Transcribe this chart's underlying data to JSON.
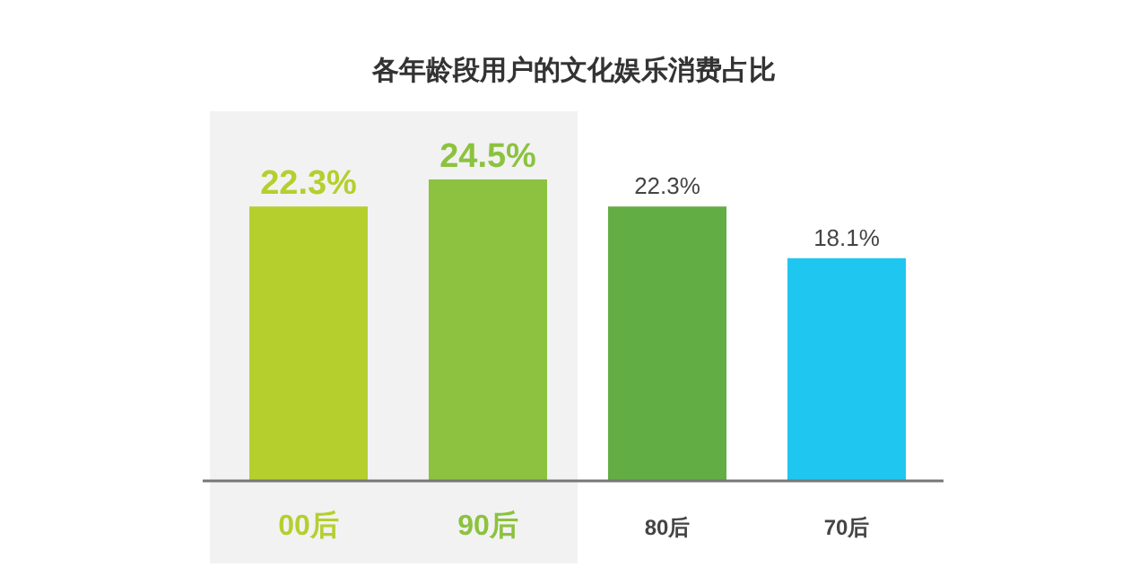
{
  "chart_data": {
    "type": "bar",
    "title": "各年龄段用户的文化娱乐消费占比",
    "categories": [
      "00后",
      "90后",
      "80后",
      "70后"
    ],
    "values": [
      22.3,
      24.5,
      22.3,
      18.1
    ],
    "value_labels": [
      "22.3%",
      "24.5%",
      "22.3%",
      "18.1%"
    ],
    "colors": [
      "#b5cf2d",
      "#8cc23f",
      "#63ad45",
      "#1fc6ef"
    ],
    "bands": [
      {
        "axis": "x",
        "from": "00后",
        "to": "90后",
        "color": "#f2f2f2"
      }
    ]
  }
}
